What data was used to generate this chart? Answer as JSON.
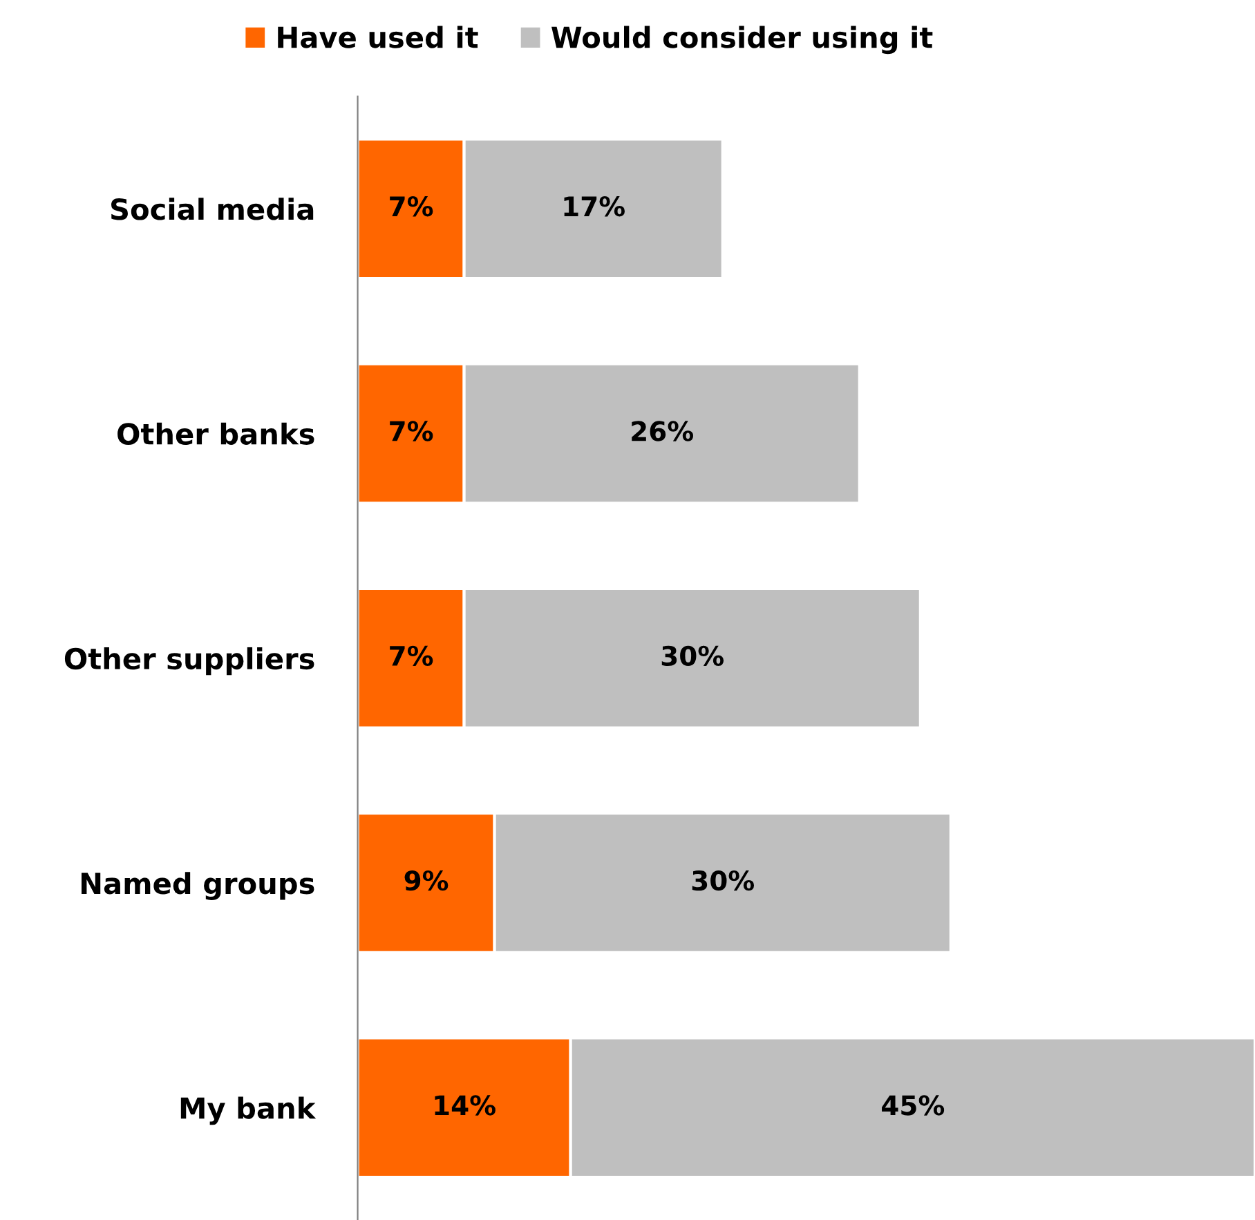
{
  "chart_data": {
    "type": "bar",
    "orientation": "horizontal",
    "stacked": true,
    "legend": "top",
    "grid": false,
    "categories": [
      "Social media",
      "Other banks",
      "Other suppliers",
      "Named groups",
      "My bank"
    ],
    "series": [
      {
        "name": "Have used it",
        "color": "#ff6600",
        "values": [
          7,
          7,
          7,
          9,
          14
        ],
        "value_labels": [
          "7%",
          "7%",
          "7%",
          "9%",
          "14%"
        ]
      },
      {
        "name": "Would consider using it",
        "color": "#bfbfbf",
        "values": [
          17,
          26,
          30,
          30,
          45
        ],
        "value_labels": [
          "17%",
          "26%",
          "30%",
          "30%",
          "45%"
        ]
      }
    ]
  }
}
